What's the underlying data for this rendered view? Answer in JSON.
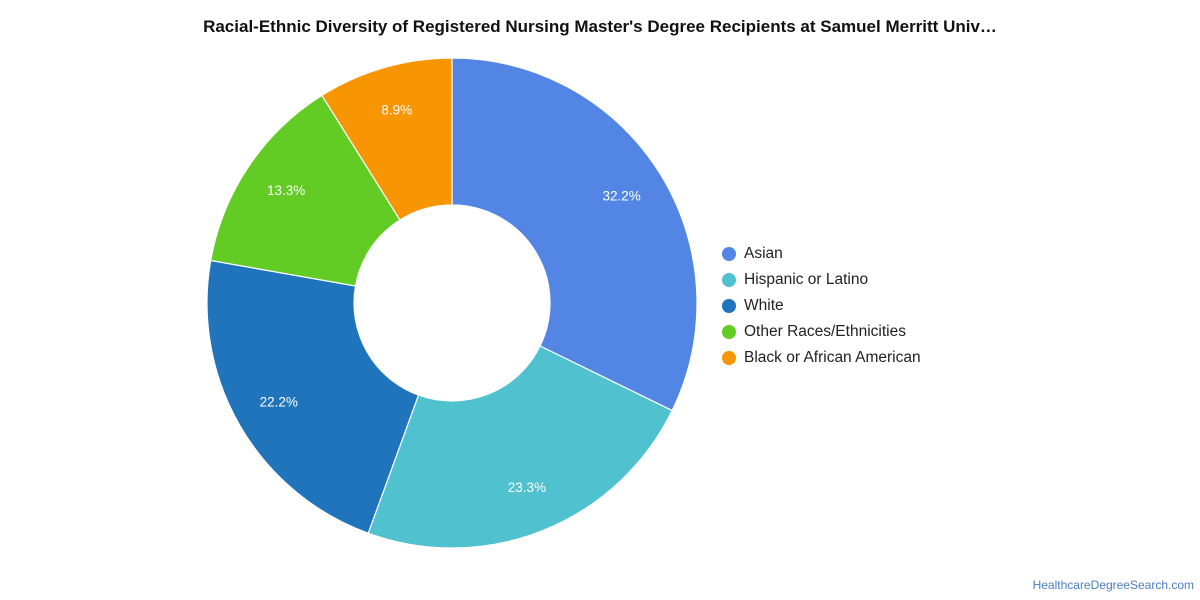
{
  "chart_data": {
    "type": "pie",
    "title": "Racial-Ethnic Diversity of Registered Nursing Master's Degree Recipients at Samuel Merritt Univ…",
    "categories": [
      "Asian",
      "Hispanic or Latino",
      "White",
      "Other Races/Ethnicities",
      "Black or African American"
    ],
    "values": [
      32.2,
      23.3,
      22.2,
      13.3,
      8.9
    ],
    "value_labels": [
      "32.2%",
      "23.3%",
      "22.2%",
      "13.3%",
      "8.9%"
    ],
    "colors": [
      "#5386e4",
      "#4fc1cf",
      "#1f74bb",
      "#62cb24",
      "#f79503"
    ],
    "donut": true,
    "legend_position": "right"
  },
  "source": "HealthcareDegreeSearch.com"
}
